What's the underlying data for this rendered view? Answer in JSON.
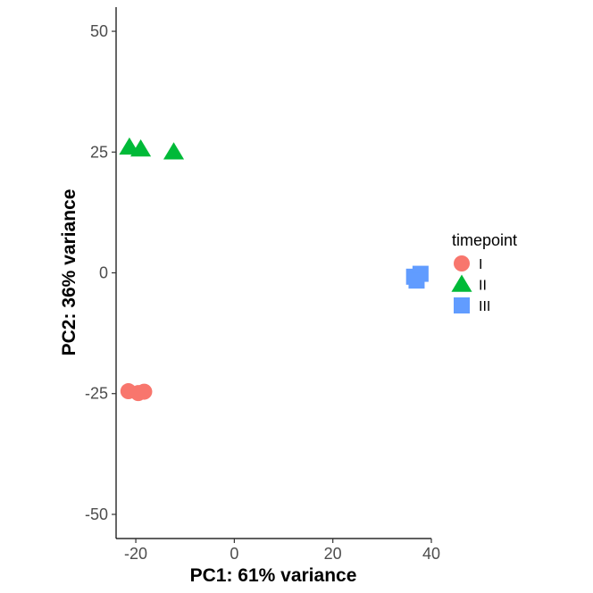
{
  "chart_data": {
    "type": "scatter",
    "xlabel": "PC1: 61% variance",
    "ylabel": "PC2: 36% variance",
    "xlim": [
      -24,
      40
    ],
    "ylim": [
      -55,
      55
    ],
    "x_ticks": [
      -20,
      0,
      20,
      40
    ],
    "y_ticks": [
      -50,
      -25,
      0,
      25,
      50
    ],
    "x_tick_labels": [
      "-20",
      "0",
      "20",
      "40"
    ],
    "y_tick_labels": [
      "-50",
      "-25",
      "0",
      "25",
      "50"
    ],
    "grid": false,
    "legend": {
      "title": "timepoint",
      "placement": "right"
    },
    "series": [
      {
        "name": "I",
        "marker": "circle",
        "color": "#F8766D",
        "points": [
          [
            -21.5,
            -24.5
          ],
          [
            -19.5,
            -24.9
          ],
          [
            -18.3,
            -24.6
          ]
        ]
      },
      {
        "name": "II",
        "marker": "triangle",
        "color": "#00BA38",
        "points": [
          [
            -21.3,
            26.0
          ],
          [
            -19.0,
            25.6
          ],
          [
            -12.3,
            25.0
          ]
        ]
      },
      {
        "name": "III",
        "marker": "square",
        "color": "#619CFF",
        "points": [
          [
            36.5,
            -0.8
          ],
          [
            37.8,
            -0.2
          ],
          [
            37.0,
            -1.6
          ]
        ]
      }
    ]
  }
}
